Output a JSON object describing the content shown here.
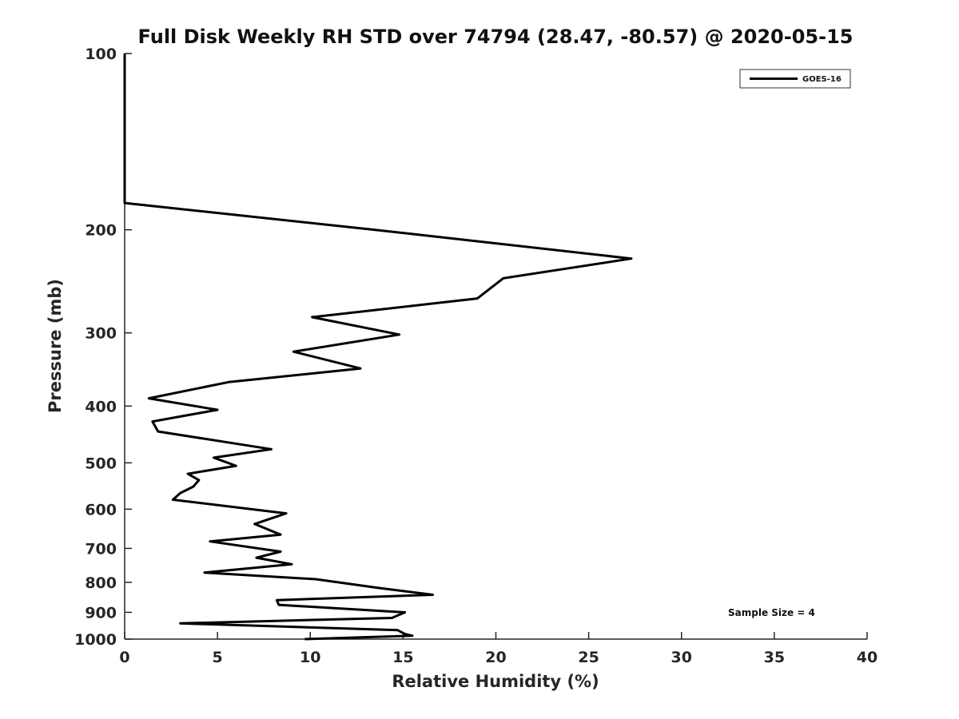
{
  "chart_data": {
    "type": "line",
    "title": "Full Disk Weekly RH STD over 74794 (28.47, -80.57) @ 2020-05-15",
    "xlabel": "Relative Humidity (%)",
    "ylabel": "Pressure (mb)",
    "xlim": [
      0,
      40
    ],
    "ylim": [
      100,
      1000
    ],
    "y_scale": "log",
    "y_reversed": true,
    "xticks": [
      "0",
      "5",
      "10",
      "15",
      "20",
      "25",
      "30",
      "35",
      "40"
    ],
    "yticks": [
      "100",
      "200",
      "300",
      "400",
      "500",
      "600",
      "700",
      "800",
      "900",
      "1000"
    ],
    "grid": false,
    "legend_position": "top-right",
    "annotation": "Sample Size = 4",
    "series": [
      {
        "name": "GOES-16",
        "color": "#000000",
        "points": [
          [
            0,
            100
          ],
          [
            0,
            150
          ],
          [
            0,
            180
          ],
          [
            13.5,
            200
          ],
          [
            27.3,
            224
          ],
          [
            20.4,
            242
          ],
          [
            19.0,
            262
          ],
          [
            10.1,
            282
          ],
          [
            14.8,
            302
          ],
          [
            9.1,
            323
          ],
          [
            12.7,
            345
          ],
          [
            5.6,
            364
          ],
          [
            1.3,
            388
          ],
          [
            5.0,
            406
          ],
          [
            1.5,
            425
          ],
          [
            1.8,
            442
          ],
          [
            7.9,
            474
          ],
          [
            4.8,
            490
          ],
          [
            6.0,
            506
          ],
          [
            3.4,
            522
          ],
          [
            4.0,
            535
          ],
          [
            3.7,
            549
          ],
          [
            3.0,
            563
          ],
          [
            2.6,
            578
          ],
          [
            8.7,
            610
          ],
          [
            7.0,
            636
          ],
          [
            8.4,
            663
          ],
          [
            4.6,
            681
          ],
          [
            8.4,
            709
          ],
          [
            7.1,
            726
          ],
          [
            9.0,
            745
          ],
          [
            4.3,
            770
          ],
          [
            10.3,
            790
          ],
          [
            13.7,
            818
          ],
          [
            16.6,
            840
          ],
          [
            8.2,
            858
          ],
          [
            8.3,
            874
          ],
          [
            15.1,
            900
          ],
          [
            14.4,
            920
          ],
          [
            3.0,
            940
          ],
          [
            14.7,
            965
          ],
          [
            15.1,
            980
          ],
          [
            15.5,
            987
          ],
          [
            9.7,
            1000
          ]
        ]
      }
    ]
  }
}
